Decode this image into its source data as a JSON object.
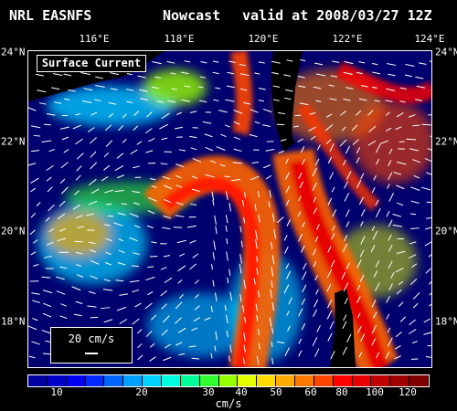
{
  "header": {
    "model": "NRL EASNFS",
    "product": "Nowcast",
    "valid": "valid at 2008/03/27 12Z"
  },
  "map": {
    "field_label": "Surface Current",
    "lon_labels": [
      "116°E",
      "118°E",
      "120°E",
      "122°E",
      "124°E"
    ],
    "lat_labels": [
      "24°N",
      "22°N",
      "20°N",
      "18°N"
    ],
    "reference_vector": "20 cm/s",
    "land_color": "#000000",
    "ocean_low_color": "#00007a"
  },
  "colorbar": {
    "units": "cm/s",
    "tick_labels": [
      "10",
      "20",
      "30",
      "40",
      "50",
      "60",
      "80",
      "100",
      "120"
    ],
    "colors": [
      "#0000a0",
      "#0000c8",
      "#0000f0",
      "#0028ff",
      "#0064ff",
      "#00a0ff",
      "#00d2ff",
      "#00ffe0",
      "#00ff96",
      "#32ff32",
      "#96ff00",
      "#e6ff00",
      "#ffdc00",
      "#ffaa00",
      "#ff7800",
      "#ff4600",
      "#ff0000",
      "#e60000",
      "#c00000",
      "#a00000",
      "#800000"
    ]
  }
}
